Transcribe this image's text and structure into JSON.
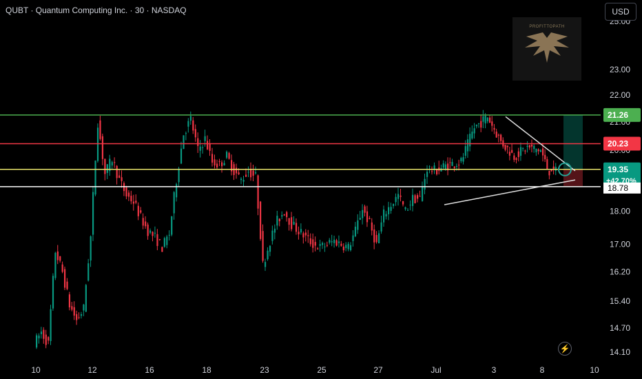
{
  "header": {
    "title": "QUBT · Quantum Computing Inc. · 30 · NASDAQ"
  },
  "currency_button": "USD",
  "watermark": {
    "text": "PROFITTOPATH"
  },
  "icons": {
    "bolt": "lightning-bolt-icon",
    "watermark": "eagle-logo-icon"
  },
  "colors": {
    "background": "#000000",
    "up": "#089981",
    "down": "#f23645",
    "green_level": "#4caf50",
    "red_level": "#f23645",
    "yellow_level": "#e8e36b",
    "white_level": "#ffffff"
  },
  "chart_data": {
    "type": "candlestick",
    "symbol": "QUBT",
    "name": "Quantum Computing Inc.",
    "interval": "30",
    "exchange": "NASDAQ",
    "currency": "USD",
    "y_scale": "log",
    "y_tick_labels": [
      "14.10",
      "14.70",
      "15.40",
      "16.20",
      "17.00",
      "18.00",
      "18.78",
      "20.00",
      "21.00",
      "22.00",
      "23.00",
      "25.00"
    ],
    "x_tick_labels": [
      "10",
      "12",
      "16",
      "18",
      "23",
      "25",
      "27",
      "Jul",
      "3",
      "8",
      "10"
    ],
    "levels": [
      {
        "label": "21.26",
        "price": 21.26,
        "color": "#4caf50"
      },
      {
        "label": "20.23",
        "price": 20.23,
        "color": "#f23645"
      },
      {
        "label": "19.35",
        "price": 19.35,
        "color": "#e8e36b",
        "change": "+42.70%"
      },
      {
        "label": "18.78",
        "price": 18.78,
        "color": "#ffffff"
      }
    ],
    "last_price": "19.35",
    "last_change": "+42.70%",
    "path": [
      [
        "10",
        14.3
      ],
      [
        "10",
        14.6
      ],
      [
        "10",
        14.3
      ],
      [
        "10",
        16.8
      ],
      [
        "10",
        16.2
      ],
      [
        "10",
        15.3
      ],
      [
        "10",
        14.9
      ],
      [
        "10",
        15.2
      ],
      [
        "12",
        17.2
      ],
      [
        "12",
        21.0
      ],
      [
        "12",
        19.2
      ],
      [
        "12",
        19.7
      ],
      [
        "12",
        19.0
      ],
      [
        "12",
        18.5
      ],
      [
        "12",
        18.3
      ],
      [
        "12",
        17.8
      ],
      [
        "16",
        17.4
      ],
      [
        "16",
        17.2
      ],
      [
        "16",
        16.9
      ],
      [
        "16",
        17.3
      ],
      [
        "16",
        19.0
      ],
      [
        "16",
        20.6
      ],
      [
        "16",
        21.1
      ],
      [
        "16",
        20.0
      ],
      [
        "18",
        20.4
      ],
      [
        "18",
        19.6
      ],
      [
        "18",
        19.5
      ],
      [
        "18",
        19.8
      ],
      [
        "18",
        19.3
      ],
      [
        "18",
        19.0
      ],
      [
        "18",
        19.3
      ],
      [
        "18",
        19.1
      ],
      [
        "23",
        16.4
      ],
      [
        "23",
        17.1
      ],
      [
        "23",
        17.7
      ],
      [
        "23",
        18.0
      ],
      [
        "23",
        17.6
      ],
      [
        "23",
        17.4
      ],
      [
        "23",
        17.2
      ],
      [
        "23",
        17.0
      ],
      [
        "25",
        16.9
      ],
      [
        "25",
        17.0
      ],
      [
        "25",
        17.1
      ],
      [
        "25",
        17.0
      ],
      [
        "25",
        16.9
      ],
      [
        "25",
        17.4
      ],
      [
        "25",
        18.1
      ],
      [
        "25",
        17.6
      ],
      [
        "27",
        17.0
      ],
      [
        "27",
        17.9
      ],
      [
        "27",
        18.2
      ],
      [
        "27",
        18.5
      ],
      [
        "27",
        18.0
      ],
      [
        "27",
        18.4
      ],
      [
        "27",
        18.4
      ],
      [
        "27",
        19.4
      ],
      [
        "Jul",
        19.3
      ],
      [
        "Jul",
        19.5
      ],
      [
        "Jul",
        19.6
      ],
      [
        "Jul",
        20.8
      ],
      [
        "Jul",
        21.2
      ],
      [
        "Jul",
        20.3
      ],
      [
        "Jul",
        19.8
      ],
      [
        "Jul",
        20.1
      ],
      [
        "8",
        20.0
      ],
      [
        "8",
        19.8
      ],
      [
        "8",
        19.6
      ],
      [
        "8",
        19.4
      ],
      [
        "8",
        19.3
      ],
      [
        "8",
        19.4
      ],
      [
        "8",
        19.2
      ],
      [
        "8",
        19.35
      ]
    ],
    "trendlines": [
      {
        "from": [
          "3",
          21.2
        ],
        "to": [
          "8",
          19.3
        ]
      },
      {
        "from": [
          "Jul",
          18.2
        ],
        "to": [
          "8",
          19.0
        ]
      }
    ],
    "position_box": {
      "target": 21.26,
      "entry": 19.35,
      "stop": 18.8
    }
  }
}
